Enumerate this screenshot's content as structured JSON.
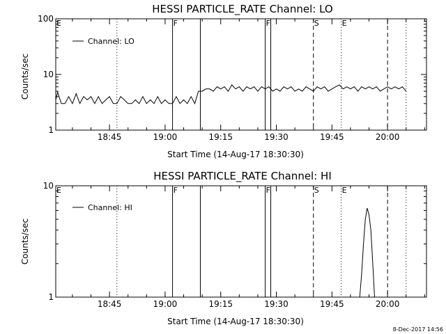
{
  "chart_data": [
    {
      "type": "line",
      "title": "HESSI PARTICLE_RATE Channel: LO",
      "xlabel": "Start Time (14-Aug-17 18:30:30)",
      "ylabel": "Counts/sec",
      "yscale": "log",
      "ylim": [
        1,
        100
      ],
      "xlim": [
        "18:30:30",
        "20:10:30"
      ],
      "x_ticks": [
        "18:45",
        "19:00",
        "19:15",
        "19:30",
        "19:45",
        "20:00"
      ],
      "y_ticks": [
        "1",
        "10",
        "100"
      ],
      "legend": {
        "entries": [
          "Channel: LO"
        ],
        "placement": "top-left"
      },
      "grid": false,
      "series": [
        {
          "name": "Channel: LO",
          "x": [
            "18:30:30",
            "18:31:00",
            "18:32:00",
            "18:33:00",
            "18:34:00",
            "18:35:00",
            "18:36:00",
            "18:37:00",
            "18:38:00",
            "18:39:00",
            "18:40:00",
            "18:41:00",
            "18:42:00",
            "18:43:00",
            "18:44:00",
            "18:45:00",
            "18:46:00",
            "18:47:00",
            "18:48:00",
            "18:49:00",
            "18:50:00",
            "18:51:00",
            "18:52:00",
            "18:53:00",
            "18:54:00",
            "18:55:00",
            "18:56:00",
            "18:57:00",
            "18:58:00",
            "18:59:00",
            "19:00:00",
            "19:01:00",
            "19:02:00",
            "19:03:00",
            "19:04:00",
            "19:05:00",
            "19:06:00",
            "19:07:00",
            "19:08:00",
            "19:09:00",
            "19:10:00",
            "19:11:00",
            "19:12:00",
            "19:13:00",
            "19:14:00",
            "19:15:00",
            "19:16:00",
            "19:17:00",
            "19:18:00",
            "19:19:00",
            "19:20:00",
            "19:21:00",
            "19:22:00",
            "19:23:00",
            "19:24:00",
            "19:25:00",
            "19:26:00",
            "19:27:00",
            "19:28:00",
            "19:29:00",
            "19:30:00",
            "19:31:00",
            "19:32:00",
            "19:33:00",
            "19:34:00",
            "19:35:00",
            "19:36:00",
            "19:37:00",
            "19:38:00",
            "19:39:00",
            "19:40:00",
            "19:41:00",
            "19:42:00",
            "19:43:00",
            "19:44:00",
            "19:45:00",
            "19:46:00",
            "19:47:00",
            "19:48:00",
            "19:49:00",
            "19:50:00",
            "19:51:00",
            "19:52:00",
            "19:53:00",
            "19:54:00",
            "19:55:00",
            "19:56:00",
            "19:57:00",
            "19:58:00",
            "19:59:00",
            "20:00:00",
            "20:01:00",
            "20:02:00",
            "20:03:00",
            "20:04:00",
            "20:05:00"
          ],
          "y": [
            3.5,
            4.8,
            3,
            3,
            4,
            3,
            4.5,
            3,
            4,
            3.5,
            4,
            3,
            4,
            3,
            3.5,
            4,
            3,
            3,
            4,
            3.5,
            3,
            3,
            3.5,
            3,
            4,
            3,
            3.5,
            3,
            4,
            3,
            3.5,
            3,
            3,
            4,
            3,
            3.5,
            3,
            4,
            3,
            5,
            5,
            5.5,
            5.5,
            5,
            6,
            5.5,
            6,
            5,
            6.5,
            5.5,
            6,
            5,
            6,
            5.5,
            6,
            5,
            6,
            5.5,
            6,
            5,
            5.5,
            5,
            6,
            5.5,
            6,
            5,
            5.5,
            5,
            6,
            5.5,
            5,
            6,
            5.5,
            6,
            5,
            5.5,
            6,
            6.5,
            5.5,
            6,
            5.5,
            6,
            5,
            6,
            5.5,
            6,
            5.5,
            6,
            5,
            5.5,
            6,
            5.5,
            6,
            5.5,
            6,
            5
          ]
        }
      ],
      "annotations": [
        {
          "label": "E",
          "x": "18:30:30",
          "style": "none"
        },
        {
          "label": "",
          "x": "18:47:00",
          "style": "dotted"
        },
        {
          "label": "F",
          "x": "19:02:00",
          "style": "solid"
        },
        {
          "label": "",
          "x": "19:09:30",
          "style": "solid"
        },
        {
          "label": "F",
          "x": "19:27:00",
          "style": "solid"
        },
        {
          "label": "",
          "x": "19:28:30",
          "style": "solid"
        },
        {
          "label": "S",
          "x": "19:40:00",
          "style": "dashed"
        },
        {
          "label": "E",
          "x": "19:47:30",
          "style": "dotted"
        },
        {
          "label": "",
          "x": "20:00:00",
          "style": "dashed"
        },
        {
          "label": "",
          "x": "20:05:00",
          "style": "dotted"
        }
      ]
    },
    {
      "type": "line",
      "title": "HESSI PARTICLE_RATE Channel: HI",
      "xlabel": "Start Time (14-Aug-17 18:30:30)",
      "ylabel": "Counts/sec",
      "yscale": "log",
      "ylim": [
        1,
        10
      ],
      "xlim": [
        "18:30:30",
        "20:10:30"
      ],
      "x_ticks": [
        "18:45",
        "19:00",
        "19:15",
        "19:30",
        "19:45",
        "20:00"
      ],
      "y_ticks": [
        "1",
        "10"
      ],
      "legend": {
        "entries": [
          "Channel: HI"
        ],
        "placement": "top-left"
      },
      "grid": false,
      "series": [
        {
          "name": "Channel: HI",
          "x": [
            "19:52:30",
            "19:53:00",
            "19:53:30",
            "19:54:00",
            "19:54:30",
            "19:55:00",
            "19:55:30",
            "19:56:00",
            "19:56:30"
          ],
          "y": [
            1,
            1.6,
            3.0,
            5.0,
            6.3,
            5.5,
            4.0,
            2.0,
            1
          ]
        }
      ],
      "annotations": [
        {
          "label": "E",
          "x": "18:30:30",
          "style": "none"
        },
        {
          "label": "",
          "x": "18:47:00",
          "style": "dotted"
        },
        {
          "label": "F",
          "x": "19:02:00",
          "style": "solid"
        },
        {
          "label": "",
          "x": "19:09:30",
          "style": "solid"
        },
        {
          "label": "F",
          "x": "19:27:00",
          "style": "solid"
        },
        {
          "label": "",
          "x": "19:28:30",
          "style": "solid"
        },
        {
          "label": "S",
          "x": "19:40:00",
          "style": "dashed"
        },
        {
          "label": "E",
          "x": "19:47:30",
          "style": "dotted"
        },
        {
          "label": "",
          "x": "20:00:00",
          "style": "dashed"
        },
        {
          "label": "",
          "x": "20:05:00",
          "style": "dotted"
        }
      ]
    }
  ],
  "footer": {
    "timestamp": "8-Dec-2017 14:56"
  }
}
